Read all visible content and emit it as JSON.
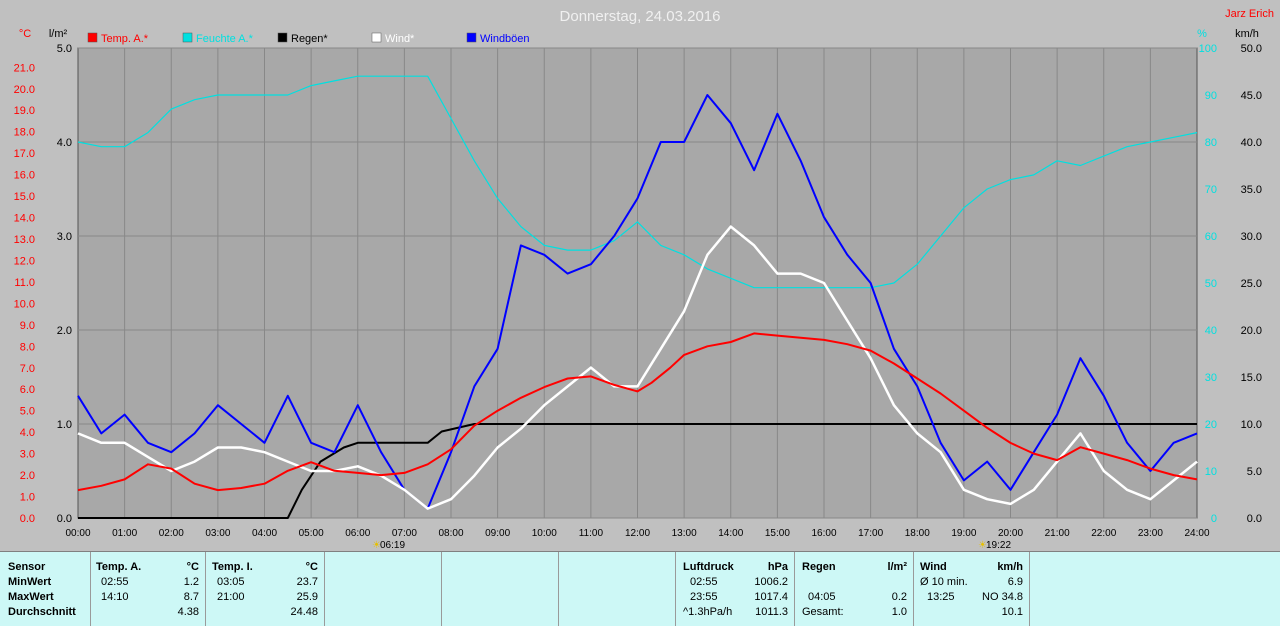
{
  "title": "Donnerstag, 24.03.2016",
  "author": "Jarz Erich",
  "colors": {
    "temp": "#ff0000",
    "feuchte": "#00e0e0",
    "regen": "#000000",
    "wind": "#ffffff",
    "windboeen": "#0000ff",
    "plot_bg": "#a8a8a8",
    "panel_bg": "#cdf8f6"
  },
  "legend": [
    {
      "label": "Temp. A.*",
      "color": "#ff0000"
    },
    {
      "label": "Feuchte A.*",
      "color": "#00e0e0"
    },
    {
      "label": "Regen*",
      "color": "#000000"
    },
    {
      "label": "Wind*",
      "color": "#ffffff"
    },
    {
      "label": "Windböen",
      "color": "#0000ff"
    }
  ],
  "axes": {
    "left1_unit": "°C",
    "left2_unit": "l/m²",
    "right1_unit": "%",
    "right2_unit": "km/h",
    "temp_ticks": [
      "0.0",
      "1.0",
      "2.0",
      "3.0",
      "4.0",
      "5.0",
      "6.0",
      "7.0",
      "8.0",
      "9.0",
      "10.0",
      "11.0",
      "12.0",
      "13.0",
      "14.0",
      "15.0",
      "16.0",
      "17.0",
      "18.0",
      "19.0",
      "20.0",
      "21.0"
    ],
    "rain_ticks": [
      "0.0",
      "1.0",
      "2.0",
      "3.0",
      "4.0",
      "5.0"
    ],
    "humidity_ticks": [
      "0",
      "10",
      "20",
      "30",
      "40",
      "50",
      "60",
      "70",
      "80",
      "90",
      "100"
    ],
    "wind_ticks": [
      "0.0",
      "5.0",
      "10.0",
      "15.0",
      "20.0",
      "25.0",
      "30.0",
      "35.0",
      "40.0",
      "45.0",
      "50.0"
    ],
    "x_ticks": [
      "00:00",
      "01:00",
      "02:00",
      "03:00",
      "04:00",
      "05:00",
      "06:00",
      "07:00",
      "08:00",
      "09:00",
      "10:00",
      "11:00",
      "12:00",
      "13:00",
      "14:00",
      "15:00",
      "16:00",
      "17:00",
      "18:00",
      "19:00",
      "20:00",
      "21:00",
      "22:00",
      "23:00",
      "24:00"
    ],
    "sunrise": "06:19",
    "sunset": "19:22"
  },
  "chart_data": {
    "type": "line",
    "title": "Donnerstag, 24.03.2016",
    "x_unit": "hour of day",
    "xlim": [
      0,
      24
    ],
    "series": [
      {
        "name": "Temp. A.*",
        "unit": "°C",
        "ylim": [
          0,
          21.9
        ],
        "points": [
          [
            0,
            1.3
          ],
          [
            0.5,
            1.5
          ],
          [
            1,
            1.8
          ],
          [
            1.5,
            2.5
          ],
          [
            2,
            2.3
          ],
          [
            2.5,
            1.6
          ],
          [
            3,
            1.3
          ],
          [
            3.5,
            1.4
          ],
          [
            4,
            1.6
          ],
          [
            4.5,
            2.2
          ],
          [
            5,
            2.6
          ],
          [
            5.5,
            2.2
          ],
          [
            6,
            2.1
          ],
          [
            6.5,
            2.0
          ],
          [
            7,
            2.1
          ],
          [
            7.5,
            2.5
          ],
          [
            8,
            3.2
          ],
          [
            8.5,
            4.3
          ],
          [
            9,
            5.0
          ],
          [
            9.5,
            5.6
          ],
          [
            10,
            6.1
          ],
          [
            10.5,
            6.5
          ],
          [
            11,
            6.6
          ],
          [
            11.5,
            6.2
          ],
          [
            12,
            5.9
          ],
          [
            12.3,
            6.3
          ],
          [
            12.7,
            7.0
          ],
          [
            13,
            7.6
          ],
          [
            13.5,
            8.0
          ],
          [
            14,
            8.2
          ],
          [
            14.5,
            8.6
          ],
          [
            15,
            8.5
          ],
          [
            15.5,
            8.4
          ],
          [
            16,
            8.3
          ],
          [
            16.5,
            8.1
          ],
          [
            17,
            7.8
          ],
          [
            17.5,
            7.2
          ],
          [
            18,
            6.5
          ],
          [
            18.5,
            5.8
          ],
          [
            19,
            5.0
          ],
          [
            19.5,
            4.2
          ],
          [
            20,
            3.5
          ],
          [
            20.5,
            3.0
          ],
          [
            21,
            2.7
          ],
          [
            21.5,
            3.3
          ],
          [
            22,
            3.0
          ],
          [
            22.5,
            2.7
          ],
          [
            23,
            2.3
          ],
          [
            23.5,
            2.0
          ],
          [
            24,
            1.8
          ]
        ]
      },
      {
        "name": "Feuchte A.*",
        "unit": "%",
        "ylim": [
          0,
          100
        ],
        "points": [
          [
            0,
            80
          ],
          [
            0.5,
            79
          ],
          [
            1,
            79
          ],
          [
            1.5,
            82
          ],
          [
            2,
            87
          ],
          [
            2.5,
            89
          ],
          [
            3,
            90
          ],
          [
            4,
            90
          ],
          [
            4.5,
            90
          ],
          [
            5,
            92
          ],
          [
            5.5,
            93
          ],
          [
            6,
            94
          ],
          [
            6.5,
            94
          ],
          [
            7,
            94
          ],
          [
            7.5,
            94
          ],
          [
            8,
            85
          ],
          [
            8.5,
            76
          ],
          [
            9,
            68
          ],
          [
            9.5,
            62
          ],
          [
            10,
            58
          ],
          [
            10.5,
            57
          ],
          [
            11,
            57
          ],
          [
            11.5,
            59
          ],
          [
            12,
            63
          ],
          [
            12.5,
            58
          ],
          [
            13,
            56
          ],
          [
            13.5,
            53
          ],
          [
            14,
            51
          ],
          [
            14.5,
            49
          ],
          [
            15,
            49
          ],
          [
            15.5,
            49
          ],
          [
            16,
            49
          ],
          [
            16.5,
            49
          ],
          [
            17,
            49
          ],
          [
            17.5,
            50
          ],
          [
            18,
            54
          ],
          [
            18.5,
            60
          ],
          [
            19,
            66
          ],
          [
            19.5,
            70
          ],
          [
            20,
            72
          ],
          [
            20.5,
            73
          ],
          [
            21,
            76
          ],
          [
            21.5,
            75
          ],
          [
            22,
            77
          ],
          [
            22.5,
            79
          ],
          [
            23,
            80
          ],
          [
            23.5,
            81
          ],
          [
            24,
            82
          ]
        ]
      },
      {
        "name": "Regen*",
        "unit": "l/m²",
        "ylim": [
          0,
          5
        ],
        "points": [
          [
            0,
            0
          ],
          [
            4.5,
            0
          ],
          [
            4.8,
            0.3
          ],
          [
            5.2,
            0.6
          ],
          [
            5.7,
            0.75
          ],
          [
            6,
            0.8
          ],
          [
            7.5,
            0.8
          ],
          [
            7.8,
            0.92
          ],
          [
            8.5,
            1.0
          ],
          [
            24,
            1.0
          ]
        ]
      },
      {
        "name": "Wind*",
        "unit": "km/h",
        "ylim": [
          0,
          50
        ],
        "points": [
          [
            0,
            9
          ],
          [
            0.5,
            8
          ],
          [
            1,
            8
          ],
          [
            1.5,
            6.5
          ],
          [
            2,
            5
          ],
          [
            2.5,
            6
          ],
          [
            3,
            7.5
          ],
          [
            3.5,
            7.5
          ],
          [
            4,
            7.0
          ],
          [
            4.5,
            6
          ],
          [
            5,
            5
          ],
          [
            5.5,
            5
          ],
          [
            6,
            5.5
          ],
          [
            6.5,
            4.5
          ],
          [
            7,
            3
          ],
          [
            7.5,
            1
          ],
          [
            8,
            2
          ],
          [
            8.5,
            4.5
          ],
          [
            9,
            7.5
          ],
          [
            9.5,
            9.5
          ],
          [
            10,
            12
          ],
          [
            10.5,
            14
          ],
          [
            11,
            16
          ],
          [
            11.5,
            14
          ],
          [
            12,
            14
          ],
          [
            12.5,
            18
          ],
          [
            13,
            22
          ],
          [
            13.5,
            28
          ],
          [
            14,
            31
          ],
          [
            14.5,
            29
          ],
          [
            15,
            26
          ],
          [
            15.5,
            26
          ],
          [
            16,
            25
          ],
          [
            16.5,
            21
          ],
          [
            17,
            17
          ],
          [
            17.5,
            12
          ],
          [
            18,
            9
          ],
          [
            18.5,
            7
          ],
          [
            19,
            3
          ],
          [
            19.5,
            2
          ],
          [
            20,
            1.5
          ],
          [
            20.5,
            3
          ],
          [
            21,
            6
          ],
          [
            21.5,
            9
          ],
          [
            22,
            5
          ],
          [
            22.5,
            3
          ],
          [
            23,
            2
          ],
          [
            23.5,
            4
          ],
          [
            24,
            6
          ]
        ]
      },
      {
        "name": "Windböen",
        "unit": "km/h",
        "ylim": [
          0,
          50
        ],
        "points": [
          [
            0,
            13
          ],
          [
            0.5,
            9
          ],
          [
            1,
            11
          ],
          [
            1.5,
            8
          ],
          [
            2,
            7
          ],
          [
            2.5,
            9
          ],
          [
            3,
            12
          ],
          [
            3.5,
            10
          ],
          [
            4,
            8
          ],
          [
            4.5,
            13
          ],
          [
            5,
            8
          ],
          [
            5.5,
            7
          ],
          [
            6,
            12
          ],
          [
            6.5,
            7
          ],
          [
            7,
            3
          ],
          [
            7.5,
            1
          ],
          [
            8,
            7
          ],
          [
            8.5,
            14
          ],
          [
            9,
            18
          ],
          [
            9.5,
            29
          ],
          [
            10,
            28
          ],
          [
            10.5,
            26
          ],
          [
            11,
            27
          ],
          [
            11.5,
            30
          ],
          [
            12,
            34
          ],
          [
            12.5,
            40
          ],
          [
            13,
            40
          ],
          [
            13.5,
            45
          ],
          [
            14,
            42
          ],
          [
            14.5,
            37
          ],
          [
            15,
            43
          ],
          [
            15.5,
            38
          ],
          [
            16,
            32
          ],
          [
            16.5,
            28
          ],
          [
            17,
            25
          ],
          [
            17.5,
            18
          ],
          [
            18,
            14
          ],
          [
            18.5,
            8
          ],
          [
            19,
            4
          ],
          [
            19.5,
            6
          ],
          [
            20,
            3
          ],
          [
            20.5,
            7
          ],
          [
            21,
            11
          ],
          [
            21.5,
            17
          ],
          [
            22,
            13
          ],
          [
            22.5,
            8
          ],
          [
            23,
            5
          ],
          [
            23.5,
            8
          ],
          [
            24,
            9
          ]
        ]
      }
    ]
  },
  "panel": {
    "sensor": {
      "header": "Sensor",
      "rows": [
        "MinWert",
        "MaxWert",
        "Durchschnitt"
      ]
    },
    "temp_a": {
      "header": "Temp. A.",
      "unit": "°C",
      "min_time": "02:55",
      "min_val": "1.2",
      "max_time": "14:10",
      "max_val": "8.7",
      "avg": "4.38"
    },
    "temp_i": {
      "header": "Temp. I.",
      "unit": "°C",
      "min_time": "03:05",
      "min_val": "23.7",
      "max_time": "21:00",
      "max_val": "25.9",
      "avg": "24.48"
    },
    "luftdruck": {
      "header": "Luftdruck",
      "unit": "hPa",
      "min_time": "02:55",
      "min_val": "1006.2",
      "max_time": "23:55",
      "max_val": "1017.4",
      "trend_label": "^1.3hPa/h",
      "trend_val": "1011.3"
    },
    "regen": {
      "header": "Regen",
      "unit": "l/m²",
      "max_time": "04:05",
      "max_val": "0.2",
      "total_label": "Gesamt:",
      "total_val": "1.0"
    },
    "wind": {
      "header": "Wind",
      "unit": "km/h",
      "avg_label": "Ø 10 min.",
      "avg_val": "6.9",
      "max_time": "13:25",
      "max_val": "NO 34.8",
      "mean_val": "10.1"
    }
  }
}
